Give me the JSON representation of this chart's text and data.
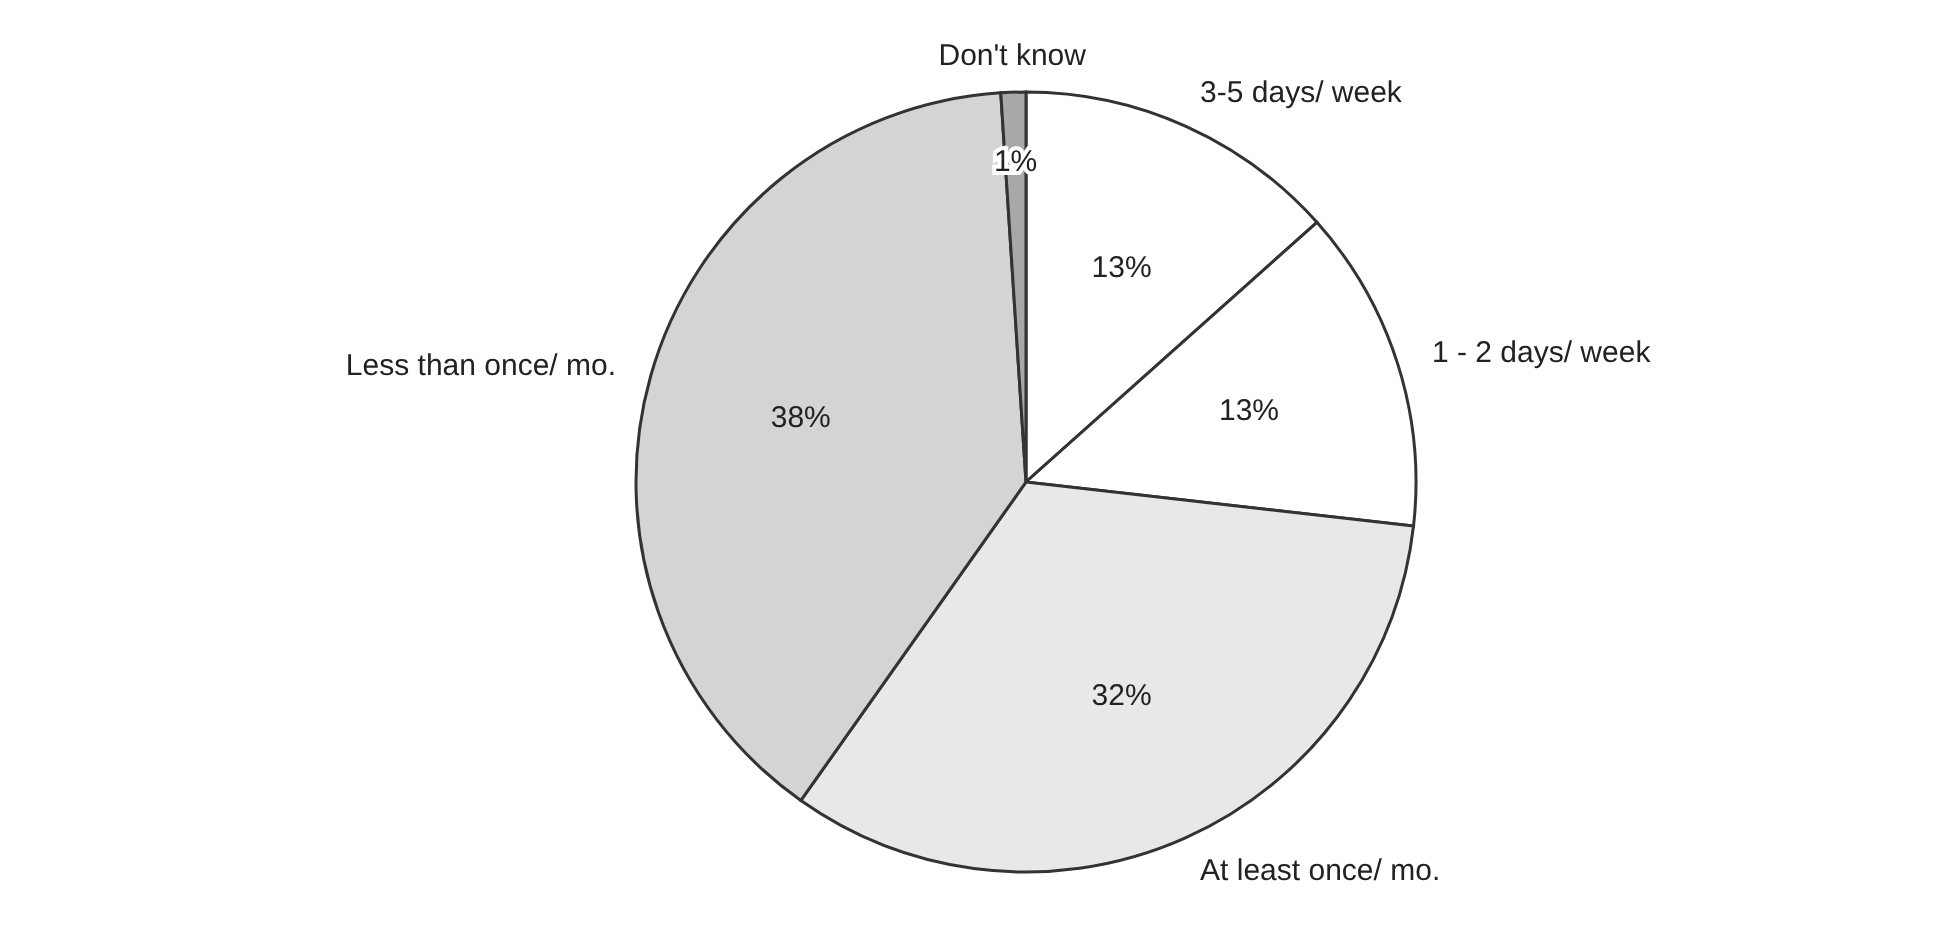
{
  "chart_data": {
    "type": "pie",
    "categories": [
      "3-5 days/ week",
      "1 - 2 days/ week",
      "At least once/ mo.",
      "Less than once/ mo.",
      "Don't know"
    ],
    "values": [
      13,
      13,
      32,
      38,
      1
    ],
    "colors": [
      "#ffffff",
      "#ffffff",
      "#e8e8e8",
      "#d4d4d4",
      "#a8a8a8"
    ],
    "value_labels": [
      "13%",
      "13%",
      "32%",
      "38%",
      "1%"
    ],
    "legend": false
  }
}
